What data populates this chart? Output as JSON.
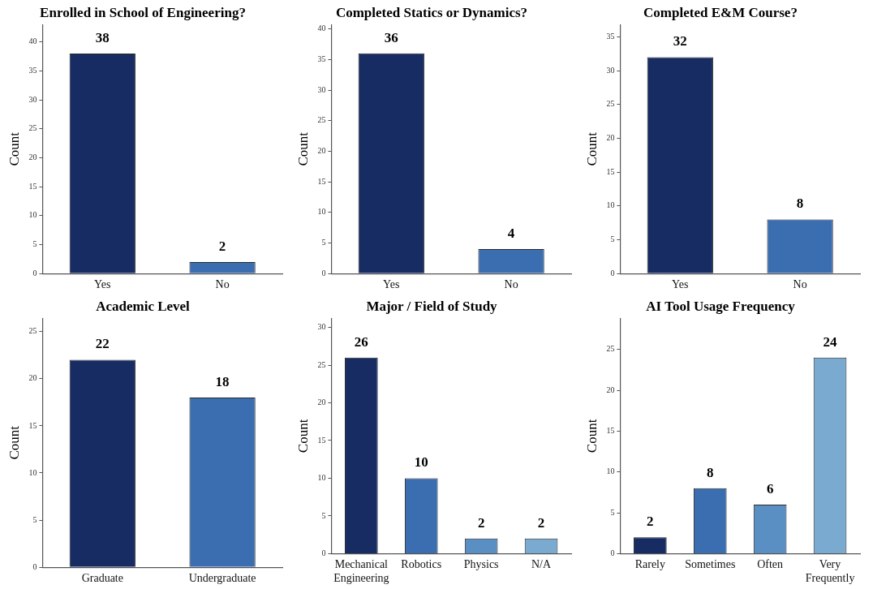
{
  "chart_data": [
    {
      "type": "bar",
      "title": "Enrolled in School of Engineering?",
      "ylabel": "Count",
      "categories": [
        "Yes",
        "No"
      ],
      "values": [
        38,
        2
      ],
      "colors": [
        "#172c63",
        "#3a6eb0"
      ],
      "ylim": [
        0,
        43
      ],
      "yticks": [
        0,
        5,
        10,
        15,
        20,
        25,
        30,
        35,
        40
      ],
      "data_labels": true,
      "grid": false,
      "legend": false
    },
    {
      "type": "bar",
      "title": "Completed Statics or Dynamics?",
      "ylabel": "Count",
      "categories": [
        "Yes",
        "No"
      ],
      "values": [
        36,
        4
      ],
      "colors": [
        "#172c63",
        "#3a6eb0"
      ],
      "ylim": [
        0,
        40.7
      ],
      "yticks": [
        0,
        5,
        10,
        15,
        20,
        25,
        30,
        35,
        40
      ],
      "data_labels": true,
      "grid": false,
      "legend": false
    },
    {
      "type": "bar",
      "title": "Completed E&M Course?",
      "ylabel": "Count",
      "categories": [
        "Yes",
        "No"
      ],
      "values": [
        32,
        8
      ],
      "colors": [
        "#172c63",
        "#3a6eb0"
      ],
      "ylim": [
        0,
        36.8
      ],
      "yticks": [
        0,
        5,
        10,
        15,
        20,
        25,
        30,
        35
      ],
      "data_labels": true,
      "grid": false,
      "legend": false
    },
    {
      "type": "bar",
      "title": "Academic Level",
      "ylabel": "Count",
      "categories": [
        "Graduate",
        "Undergraduate"
      ],
      "values": [
        22,
        18
      ],
      "colors": [
        "#172c63",
        "#3a6eb0"
      ],
      "ylim": [
        0,
        26.4
      ],
      "yticks": [
        0,
        5,
        10,
        15,
        20,
        25
      ],
      "data_labels": true,
      "grid": false,
      "legend": false
    },
    {
      "type": "bar",
      "title": "Major / Field of Study",
      "ylabel": "Count",
      "categories": [
        "Mechanical Engineering",
        "Robotics",
        "Physics",
        "N/A"
      ],
      "values": [
        26,
        10,
        2,
        2
      ],
      "colors": [
        "#172c63",
        "#3a6eb0",
        "#5a8fc3",
        "#7aaad0"
      ],
      "ylim": [
        0,
        31.2
      ],
      "yticks": [
        0,
        5,
        10,
        15,
        20,
        25,
        30
      ],
      "data_labels": true,
      "grid": false,
      "legend": false
    },
    {
      "type": "bar",
      "title": "AI Tool Usage Frequency",
      "ylabel": "Count",
      "categories": [
        "Rarely",
        "Sometimes",
        "Often",
        "Very Frequently"
      ],
      "values": [
        2,
        8,
        6,
        24
      ],
      "colors": [
        "#172c63",
        "#3a6eb0",
        "#5a8fc3",
        "#7aaad0"
      ],
      "ylim": [
        0,
        28.8
      ],
      "yticks": [
        0,
        5,
        10,
        15,
        20,
        25
      ],
      "data_labels": true,
      "grid": false,
      "legend": false
    }
  ]
}
